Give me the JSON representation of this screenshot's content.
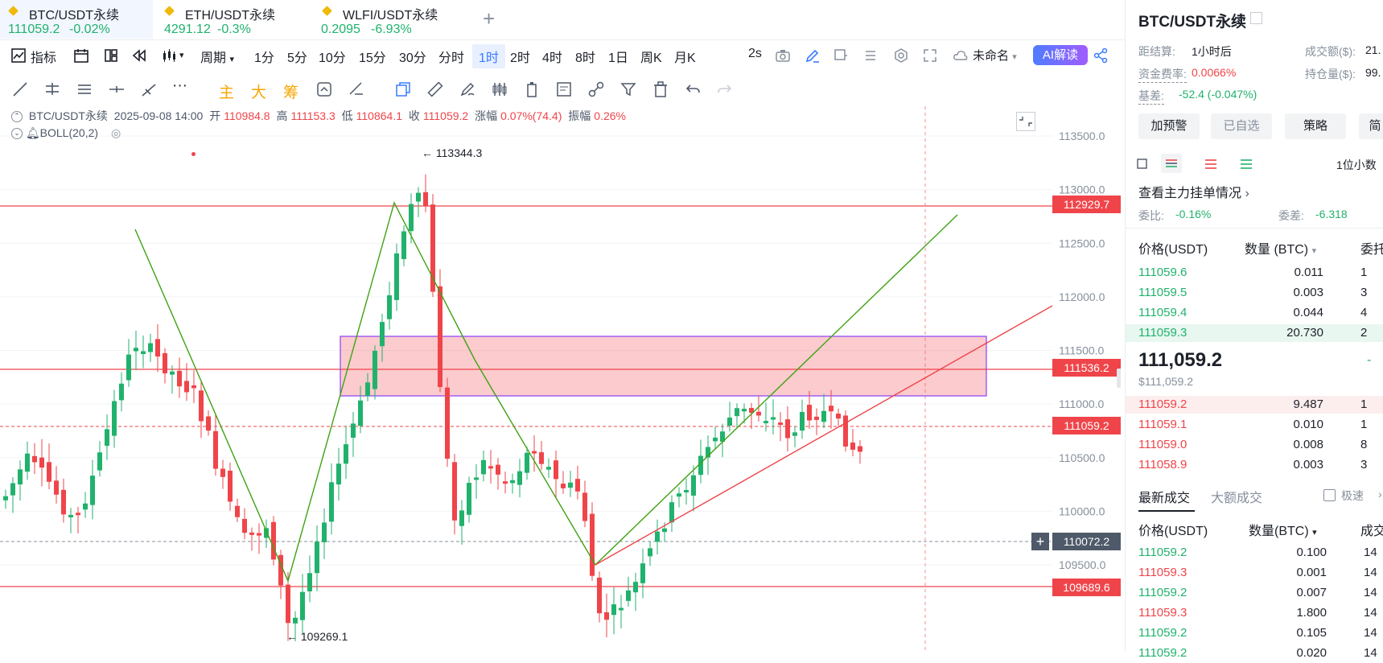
{
  "tabs": [
    {
      "name": "BTC/USDT永续",
      "price": "111059.2",
      "change": "-0.02%"
    },
    {
      "name": "ETH/USDT永续",
      "price": "4291.12",
      "change": "-0.3%"
    },
    {
      "name": "WLFI/USDT永续",
      "price": "0.2095",
      "change": "-6.93%"
    }
  ],
  "toolbar1": {
    "indicators": "指标",
    "period": "周期",
    "intervals": [
      "1分",
      "5分",
      "10分",
      "15分",
      "30分",
      "分时",
      "1时",
      "2时",
      "4时",
      "8时",
      "1日",
      "周K",
      "月K"
    ],
    "selected_interval": "1时",
    "refresh": "2s",
    "cloud_name": "未命名",
    "ai": "AI解读"
  },
  "toolbar2": {
    "main": "主",
    "big": "大",
    "chip": "筹"
  },
  "chart_info": {
    "symbol": "BTC/USDT永续",
    "datetime": "2025-09-08 14:00",
    "open_label": "开",
    "open": "110984.8",
    "high_label": "高",
    "high": "111153.3",
    "low_label": "低",
    "low": "110864.1",
    "close_label": "收",
    "close": "111059.2",
    "change_label": "涨幅",
    "change": "0.07%(74.4)",
    "amp_label": "振幅",
    "amp": "0.26%",
    "boll": "BOLL(20,2)"
  },
  "axis": {
    "ticks": [
      "113500.0",
      "113000.0",
      "112500.0",
      "112000.0",
      "111500.0",
      "111000.0",
      "110500.0",
      "110000.0",
      "109500.0"
    ],
    "price_tags": [
      {
        "label": "112929.7",
        "color": "#ef454a"
      },
      {
        "label": "111536.2",
        "color": "#ef454a"
      },
      {
        "label": "111059.2",
        "color": "#ef454a"
      },
      {
        "label": "110072.2",
        "color": "#4e5969"
      },
      {
        "label": "109689.6",
        "color": "#ef454a"
      }
    ],
    "high_mark": "113344.3",
    "low_mark": "109269.1"
  },
  "panel": {
    "title": "BTC/USDT永续",
    "settle_label": "距结算:",
    "settle_value": "1小时后",
    "volume_label": "成交额($):",
    "volume_value": "21.",
    "funding_label": "资金费率:",
    "funding_value": "0.0066%",
    "oi_label": "持仓量($):",
    "oi_value": "99.",
    "basis_label": "基差:",
    "basis_value": "-52.4 (-0.047%)",
    "buttons": [
      "加预警",
      "已自选",
      "策略",
      "简"
    ],
    "precision": "1位小数",
    "depth_link": "查看主力挂单情况",
    "ratio_label": "委比:",
    "ratio_value": "-0.16%",
    "diff_label": "委差:",
    "diff_value": "-6.318",
    "ob_headers": [
      "价格(USDT)",
      "数量 (BTC)",
      "委托"
    ],
    "bids_top": [
      {
        "price": "111059.6",
        "qty": "0.011",
        "right": "1"
      },
      {
        "price": "111059.5",
        "qty": "0.003",
        "right": "3"
      },
      {
        "price": "111059.4",
        "qty": "0.044",
        "right": "4"
      },
      {
        "price": "111059.3",
        "qty": "20.730",
        "right": "2"
      }
    ],
    "last_price": "111,059.2",
    "last_price_usd": "$111,059.2",
    "last_price_right": "-",
    "asks_bottom": [
      {
        "price": "111059.2",
        "qty": "9.487",
        "right": "1"
      },
      {
        "price": "111059.1",
        "qty": "0.010",
        "right": "1"
      },
      {
        "price": "111059.0",
        "qty": "0.008",
        "right": "8"
      },
      {
        "price": "111058.9",
        "qty": "0.003",
        "right": "3"
      }
    ],
    "trade_tabs": [
      "最新成交",
      "大额成交"
    ],
    "fast_label": "极速",
    "trade_headers": [
      "价格(USDT)",
      "数量(BTC)",
      "成交"
    ],
    "trades": [
      {
        "price": "111059.2",
        "qty": "0.100",
        "time": "14",
        "side": "buy"
      },
      {
        "price": "111059.3",
        "qty": "0.001",
        "time": "14",
        "side": "sell"
      },
      {
        "price": "111059.2",
        "qty": "0.007",
        "time": "14",
        "side": "buy"
      },
      {
        "price": "111059.3",
        "qty": "1.800",
        "time": "14",
        "side": "sell"
      },
      {
        "price": "111059.2",
        "qty": "0.105",
        "time": "14",
        "side": "buy"
      },
      {
        "price": "111059.2",
        "qty": "0.020",
        "time": "14",
        "side": "buy"
      }
    ]
  },
  "colors": {
    "up": "#20b26c",
    "down": "#ef454a",
    "accent": "#3a7bff"
  }
}
